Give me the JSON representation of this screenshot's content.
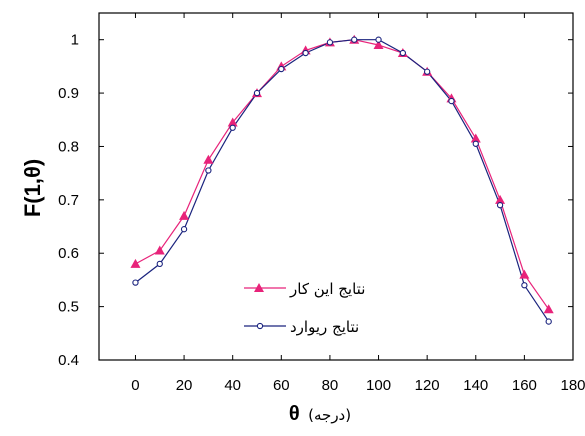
{
  "chart_data": {
    "type": "line",
    "xlabel": {
      "symbol": "θ",
      "unit": "(درجه)"
    },
    "ylabel": "F(1,θ)",
    "xlim": [
      -15,
      180
    ],
    "ylim": [
      0.4,
      1.05
    ],
    "xticks": [
      0,
      20,
      40,
      60,
      80,
      100,
      120,
      140,
      160,
      180
    ],
    "yticks": [
      0.4,
      0.5,
      0.6,
      0.7,
      0.8,
      0.9,
      1
    ],
    "grid": false,
    "legend_position": "lower-center",
    "series": [
      {
        "name": "نتایج این کار",
        "marker": "filled-triangle",
        "color": "#e8237a",
        "x": [
          0,
          10,
          20,
          30,
          40,
          50,
          60,
          70,
          80,
          90,
          100,
          110,
          120,
          130,
          140,
          150,
          160,
          170
        ],
        "y": [
          0.58,
          0.605,
          0.67,
          0.775,
          0.845,
          0.9,
          0.95,
          0.98,
          0.995,
          1.0,
          0.99,
          0.975,
          0.94,
          0.89,
          0.815,
          0.7,
          0.56,
          0.495
        ]
      },
      {
        "name": "نتایج ریوارد",
        "marker": "open-circle",
        "color": "#1a237e",
        "x": [
          0,
          10,
          20,
          30,
          40,
          50,
          60,
          70,
          80,
          90,
          100,
          110,
          120,
          130,
          140,
          150,
          160,
          170
        ],
        "y": [
          0.545,
          0.58,
          0.645,
          0.755,
          0.835,
          0.9,
          0.945,
          0.975,
          0.995,
          1.0,
          1.0,
          0.975,
          0.94,
          0.885,
          0.805,
          0.69,
          0.54,
          0.472
        ]
      }
    ]
  }
}
